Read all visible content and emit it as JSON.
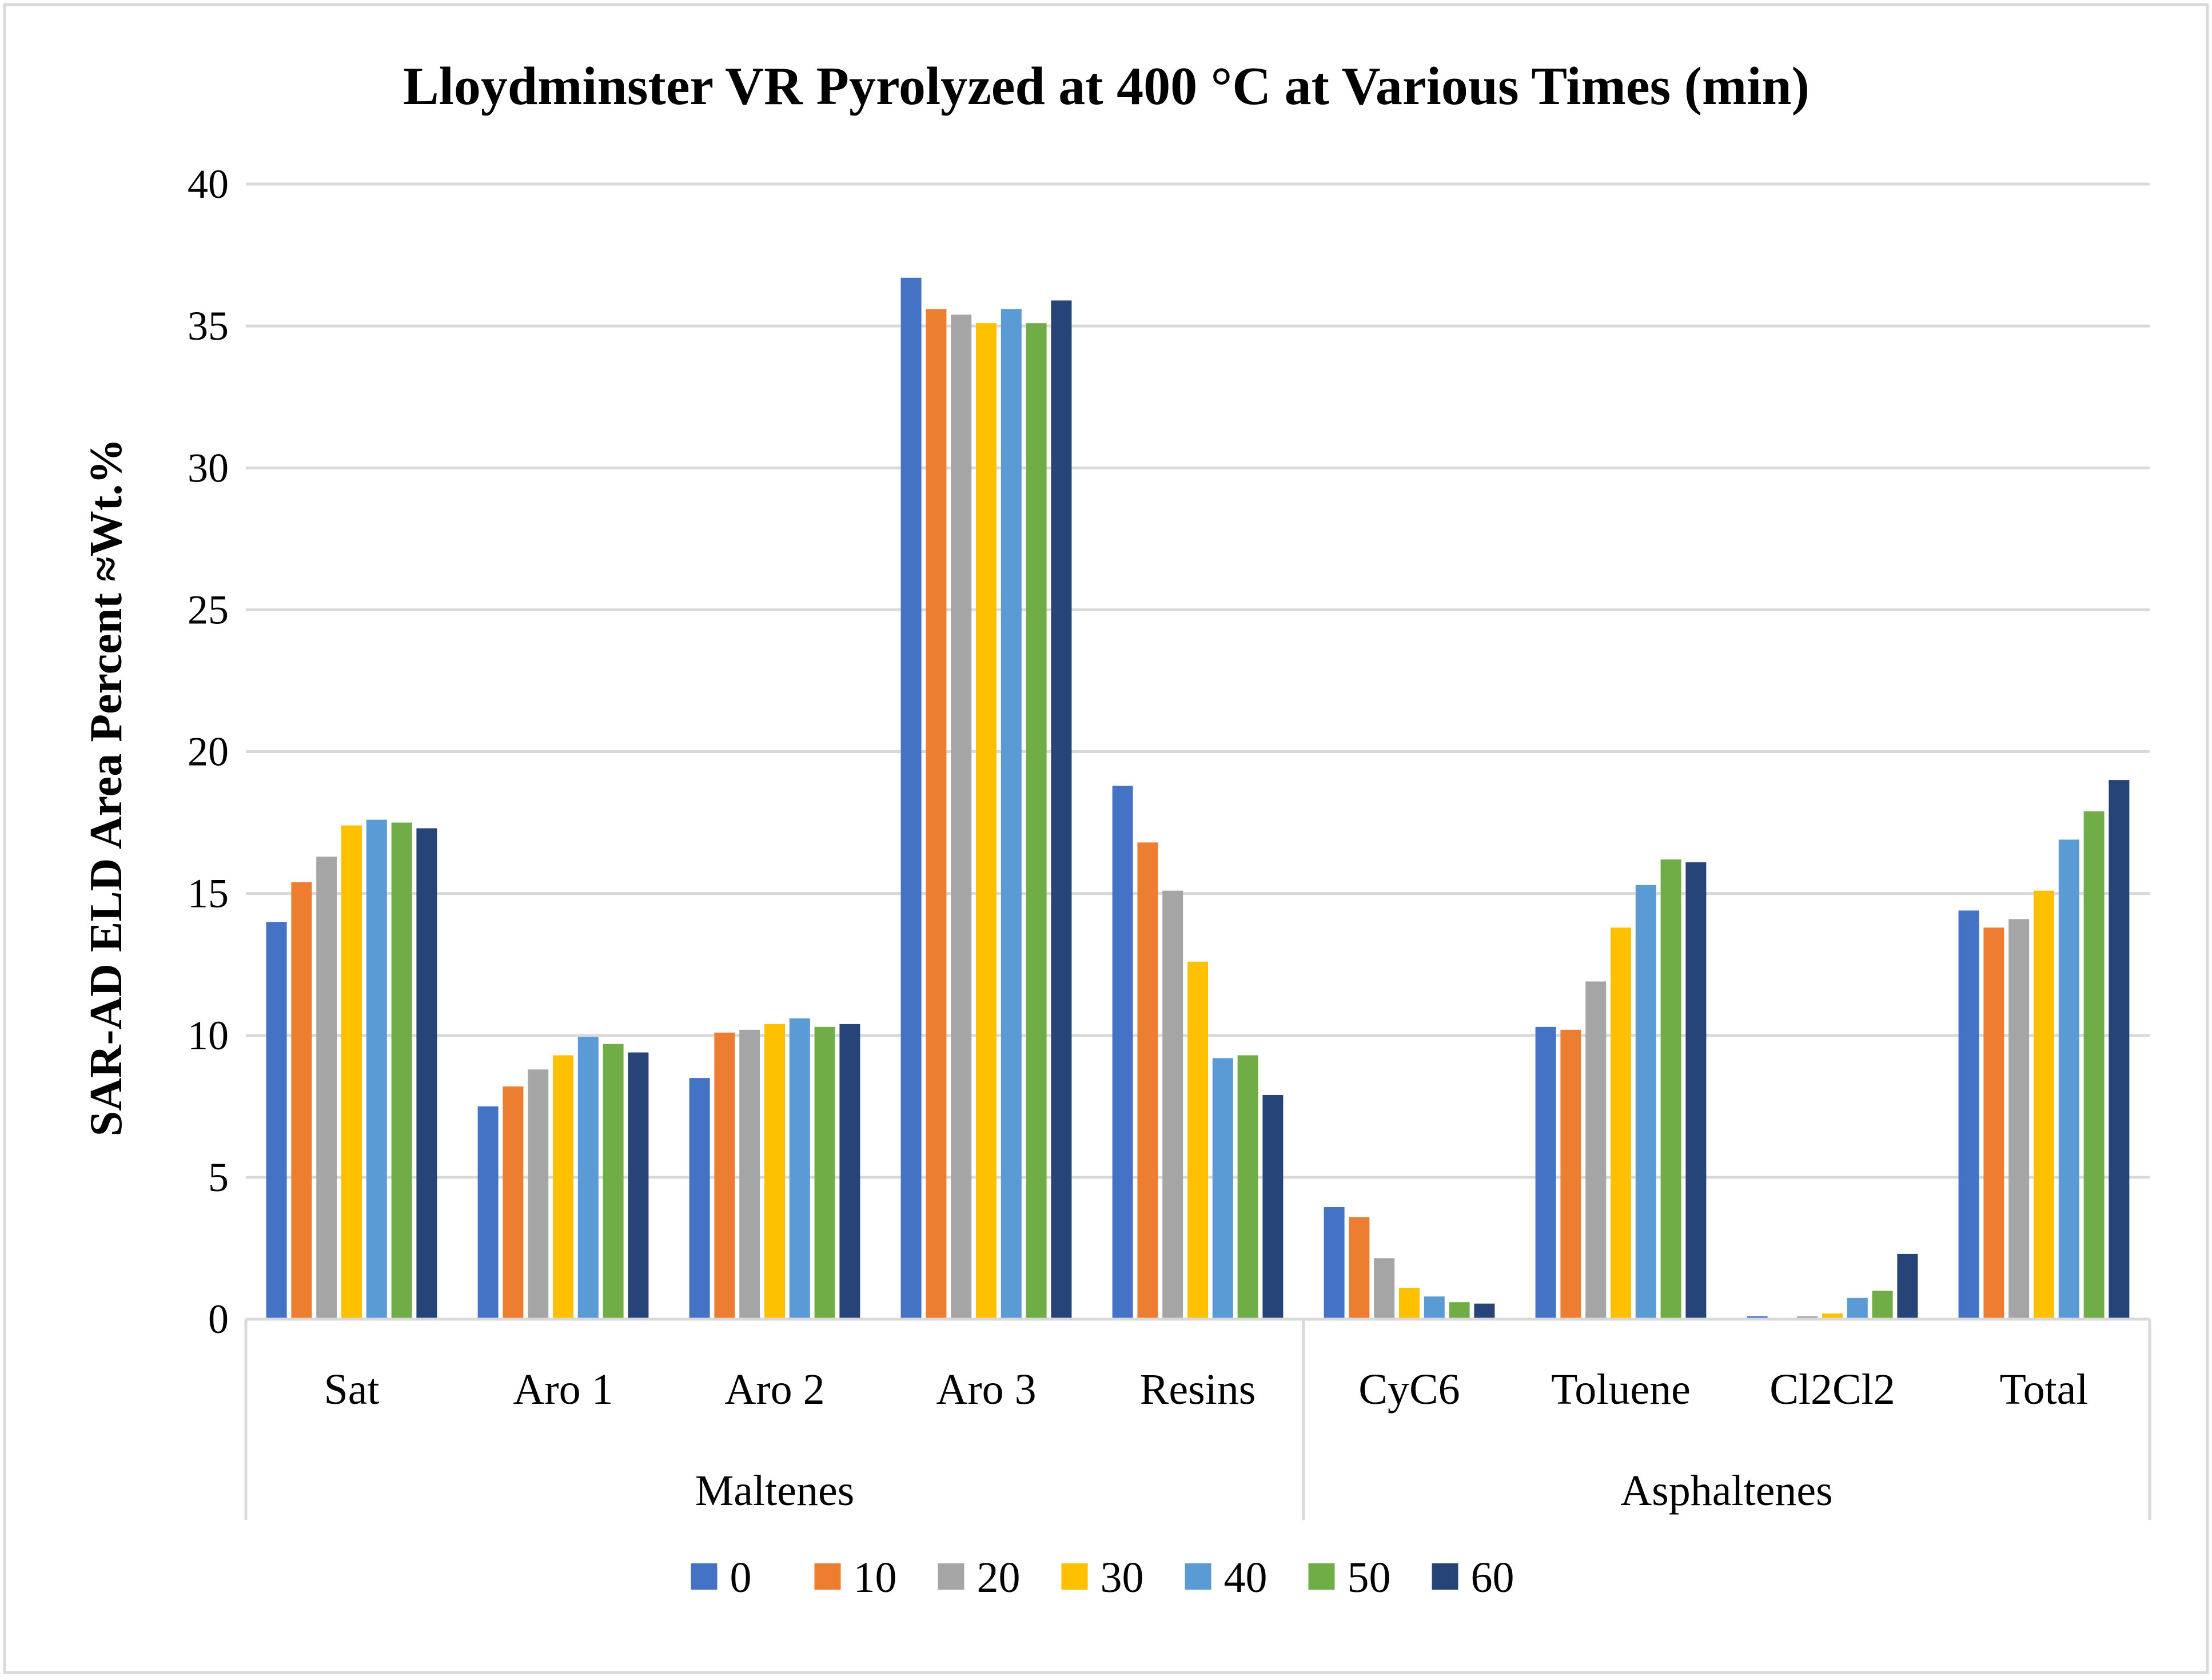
{
  "chart_data": {
    "type": "bar",
    "title": "Lloydminster VR Pyrolyzed at 400 °C at Various Times (min)",
    "xlabel": "",
    "ylabel": "SAR-AD ELD Area Percent ≈Wt.%",
    "ylim": [
      0,
      40
    ],
    "yticks": [
      0,
      5,
      10,
      15,
      20,
      25,
      30,
      35,
      40
    ],
    "grid": true,
    "legend_position": "bottom",
    "categories": [
      "Sat",
      "Aro 1",
      "Aro 2",
      "Aro 3",
      "Resins",
      "CyC6",
      "Toluene",
      "Cl2Cl2",
      "Total"
    ],
    "groups": [
      {
        "label": "Maltenes",
        "count": 5
      },
      {
        "label": "Asphaltenes",
        "count": 4
      }
    ],
    "series": [
      {
        "name": "0",
        "color": "#4472C4",
        "values": [
          14.0,
          7.5,
          8.5,
          36.7,
          18.8,
          3.95,
          10.3,
          0.1,
          14.4
        ]
      },
      {
        "name": "10",
        "color": "#ED7D31",
        "values": [
          15.4,
          8.2,
          10.1,
          35.6,
          16.8,
          3.6,
          10.2,
          0.05,
          13.8
        ]
      },
      {
        "name": "20",
        "color": "#A5A5A5",
        "values": [
          16.3,
          8.8,
          10.2,
          35.4,
          15.1,
          2.15,
          11.9,
          0.1,
          14.1
        ]
      },
      {
        "name": "30",
        "color": "#FFC000",
        "values": [
          17.4,
          9.3,
          10.4,
          35.1,
          12.6,
          1.1,
          13.8,
          0.2,
          15.1
        ]
      },
      {
        "name": "40",
        "color": "#5B9BD5",
        "values": [
          17.6,
          9.95,
          10.6,
          35.6,
          9.2,
          0.8,
          15.3,
          0.75,
          16.9
        ]
      },
      {
        "name": "50",
        "color": "#70AD47",
        "values": [
          17.5,
          9.7,
          10.3,
          35.1,
          9.3,
          0.6,
          16.2,
          1.0,
          17.9
        ]
      },
      {
        "name": "60",
        "color": "#264478",
        "values": [
          17.3,
          9.4,
          10.4,
          35.9,
          7.9,
          0.55,
          16.1,
          2.3,
          19.0
        ]
      }
    ]
  }
}
